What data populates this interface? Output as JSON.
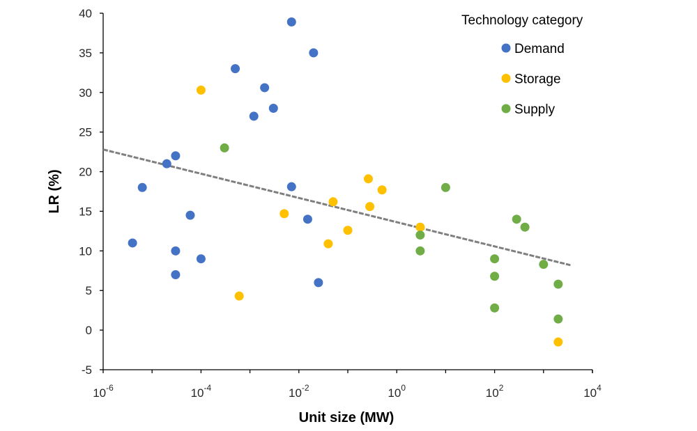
{
  "chart_data": {
    "type": "scatter",
    "title": "",
    "xlabel": "Unit size (MW)",
    "ylabel": "LR (%)",
    "xscale": "log",
    "xlim_exp": [
      -6,
      4
    ],
    "ylim": [
      -5,
      40
    ],
    "yticks": [
      -5,
      0,
      5,
      10,
      15,
      20,
      25,
      30,
      35,
      40
    ],
    "xticks": [
      {
        "base": "10",
        "exp": "-6",
        "value_exp": -6
      },
      {
        "base": "10",
        "exp": "-4",
        "value_exp": -4
      },
      {
        "base": "10",
        "exp": "-2",
        "value_exp": -2
      },
      {
        "base": "10",
        "exp": "0",
        "value_exp": 0
      },
      {
        "base": "10",
        "exp": "2",
        "value_exp": 2
      },
      {
        "base": "10",
        "exp": "4",
        "value_exp": 4
      }
    ],
    "grid": false,
    "legend": {
      "title": "Technology category",
      "position": "top-right"
    },
    "series": [
      {
        "name": "Demand",
        "color": "#4472c4",
        "points": [
          {
            "log10x": -5.4,
            "y": 11
          },
          {
            "log10x": -5.2,
            "y": 18
          },
          {
            "log10x": -4.7,
            "y": 21
          },
          {
            "log10x": -4.52,
            "y": 22
          },
          {
            "log10x": -4.52,
            "y": 10
          },
          {
            "log10x": -4.52,
            "y": 7
          },
          {
            "log10x": -4.22,
            "y": 14.5
          },
          {
            "log10x": -4.0,
            "y": 9
          },
          {
            "log10x": -3.3,
            "y": 33
          },
          {
            "log10x": -2.92,
            "y": 27
          },
          {
            "log10x": -2.7,
            "y": 30.6
          },
          {
            "log10x": -2.52,
            "y": 28
          },
          {
            "log10x": -2.15,
            "y": 38.9
          },
          {
            "log10x": -2.15,
            "y": 18.1
          },
          {
            "log10x": -1.82,
            "y": 14
          },
          {
            "log10x": -1.7,
            "y": 35
          },
          {
            "log10x": -1.6,
            "y": 6
          }
        ]
      },
      {
        "name": "Storage",
        "color": "#ffc000",
        "points": [
          {
            "log10x": -4.0,
            "y": 30.3
          },
          {
            "log10x": -3.22,
            "y": 4.3
          },
          {
            "log10x": -2.3,
            "y": 14.7
          },
          {
            "log10x": -1.4,
            "y": 10.9
          },
          {
            "log10x": -1.3,
            "y": 16.2
          },
          {
            "log10x": -1.0,
            "y": 12.6
          },
          {
            "log10x": -0.58,
            "y": 19.1
          },
          {
            "log10x": -0.55,
            "y": 15.6
          },
          {
            "log10x": -0.3,
            "y": 17.7
          },
          {
            "log10x": 0.48,
            "y": 13
          },
          {
            "log10x": 3.3,
            "y": -1.5
          }
        ]
      },
      {
        "name": "Supply",
        "color": "#70ad47",
        "points": [
          {
            "log10x": -3.52,
            "y": 23
          },
          {
            "log10x": 0.48,
            "y": 12
          },
          {
            "log10x": 0.48,
            "y": 10
          },
          {
            "log10x": 1.0,
            "y": 18
          },
          {
            "log10x": 2.0,
            "y": 9
          },
          {
            "log10x": 2.0,
            "y": 6.8
          },
          {
            "log10x": 2.0,
            "y": 2.8
          },
          {
            "log10x": 2.45,
            "y": 14
          },
          {
            "log10x": 2.62,
            "y": 13
          },
          {
            "log10x": 3.0,
            "y": 8.3
          },
          {
            "log10x": 3.3,
            "y": 5.8
          },
          {
            "log10x": 3.3,
            "y": 1.4
          }
        ]
      }
    ],
    "trendline": {
      "color": "#7f7f7f",
      "style": "dashed",
      "from": {
        "log10x": -6,
        "y": 22.8
      },
      "to": {
        "log10x": 3.55,
        "y": 8.2
      }
    }
  }
}
